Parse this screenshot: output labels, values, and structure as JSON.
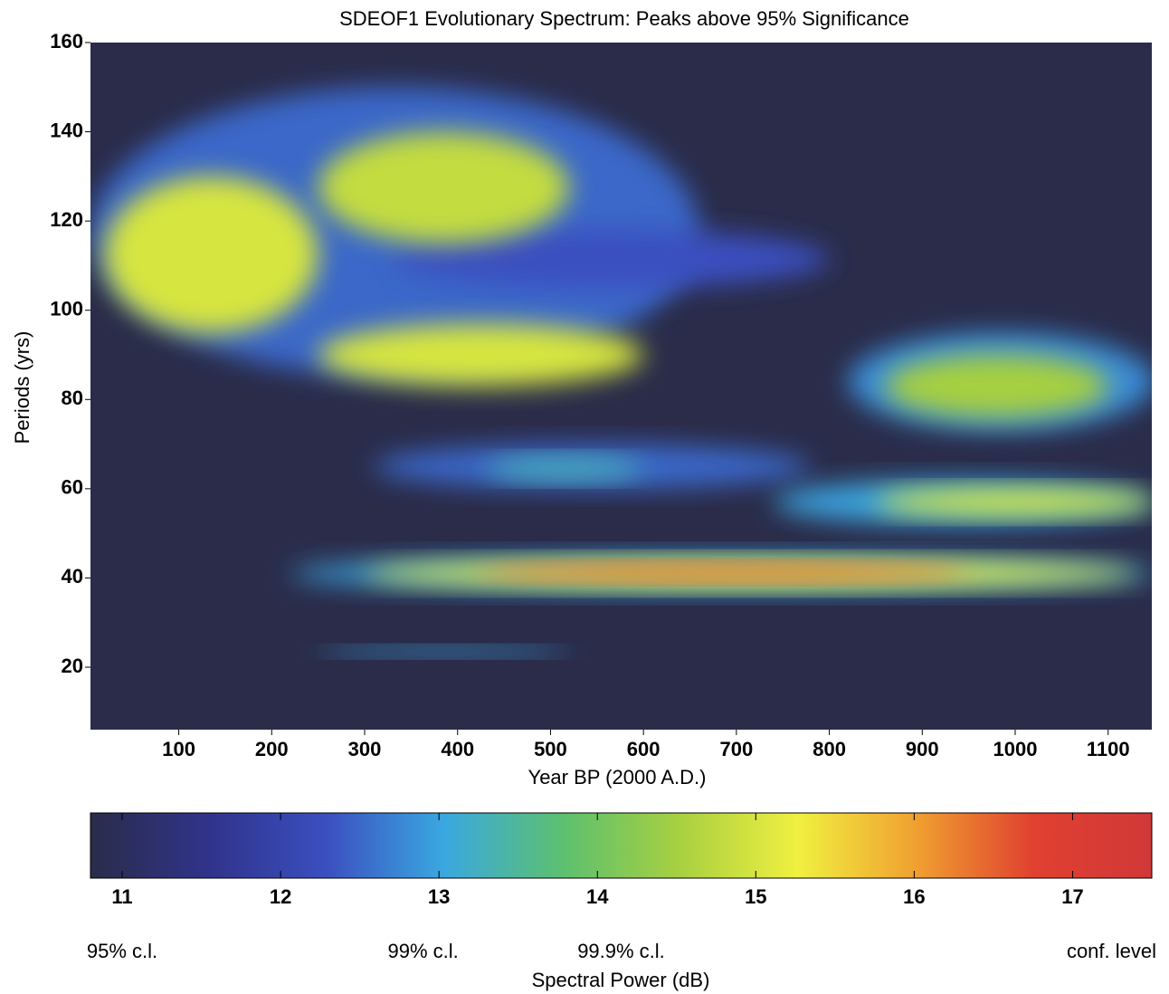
{
  "chart_data": {
    "type": "heatmap",
    "title": "SDEOF1 Evolutionary Spectrum: Peaks above 95% Significance",
    "x_label": "Year BP (2000 A.D.)",
    "y_label": "Periods (yrs)",
    "xlim": [
      5,
      1147
    ],
    "xticks": [
      100,
      200,
      300,
      400,
      500,
      600,
      700,
      800,
      900,
      1000,
      1100
    ],
    "ylim": [
      6,
      160
    ],
    "yticks": [
      20,
      40,
      60,
      80,
      100,
      120,
      140,
      160
    ],
    "colormap": [
      "#2a2c4a",
      "#30338a",
      "#3b4fc0",
      "#3aa8e0",
      "#5cc070",
      "#a8d040",
      "#f0f040",
      "#f0a030",
      "#e04030",
      "#d03838"
    ],
    "features": [
      {
        "x": [
          5,
          660
        ],
        "y": [
          85,
          150
        ],
        "value": 12.5
      },
      {
        "x": [
          330,
          800
        ],
        "y": [
          105,
          118
        ],
        "value": 12.3
      },
      {
        "x": [
          20,
          250
        ],
        "y": [
          95,
          130
        ],
        "value": 15.0
      },
      {
        "x": [
          250,
          520
        ],
        "y": [
          115,
          140
        ],
        "value": 14.8
      },
      {
        "x": [
          250,
          600
        ],
        "y": [
          83,
          97
        ],
        "value": 15.0
      },
      {
        "x": [
          820,
          1150
        ],
        "y": [
          73,
          95
        ],
        "value": 12.8
      },
      {
        "x": [
          860,
          1100
        ],
        "y": [
          76,
          90
        ],
        "value": 14.5
      },
      {
        "x": [
          310,
          780
        ],
        "y": [
          60,
          70
        ],
        "value": 12.5
      },
      {
        "x": [
          430,
          600
        ],
        "y": [
          62,
          67
        ],
        "value": 13.3
      },
      {
        "x": [
          740,
          1150
        ],
        "y": [
          52,
          62
        ],
        "value": 13.0
      },
      {
        "x": [
          850,
          1150
        ],
        "y": [
          54,
          60
        ],
        "value": 15.0
      },
      {
        "x": [
          220,
          1150
        ],
        "y": [
          37,
          45
        ],
        "value": 13.0
      },
      {
        "x": [
          300,
          1130
        ],
        "y": [
          38,
          44
        ],
        "value": 15.2
      },
      {
        "x": [
          420,
          950
        ],
        "y": [
          39.5,
          43
        ],
        "value": 16.5
      },
      {
        "x": [
          250,
          520
        ],
        "y": [
          22.5,
          24.5
        ],
        "value": 13.0
      }
    ],
    "colorbar": {
      "title": "Spectral Power (dB)",
      "clim": [
        10.8,
        17.5
      ],
      "ticks": [
        11,
        12,
        13,
        14,
        15,
        16,
        17
      ],
      "levels_title": "conf. level",
      "levels": [
        {
          "value": 11,
          "label": "95% c.l."
        },
        {
          "value": 12.9,
          "label": "99% c.l."
        },
        {
          "value": 14.15,
          "label": "99.9% c.l."
        }
      ]
    }
  }
}
